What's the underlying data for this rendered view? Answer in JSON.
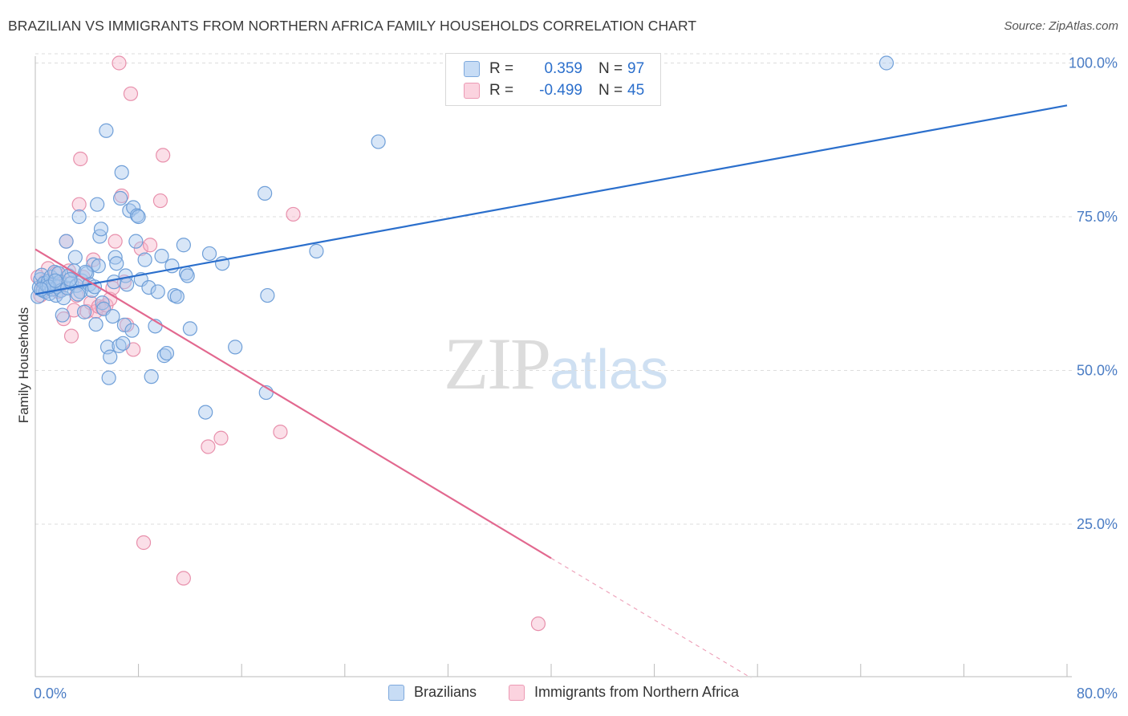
{
  "header": {
    "title": "BRAZILIAN VS IMMIGRANTS FROM NORTHERN AFRICA FAMILY HOUSEHOLDS CORRELATION CHART",
    "source": "Source: ZipAtlas.com"
  },
  "watermark": {
    "zip": "ZIP",
    "atlas": "atlas"
  },
  "legend_top": {
    "rows": [
      {
        "r_label": "R =",
        "r_value": "0.359",
        "n_label": "N =",
        "n_value": "97",
        "color": "#a8c8ee"
      },
      {
        "r_label": "R =",
        "r_value": "-0.499",
        "n_label": "N =",
        "n_value": "45",
        "color": "#f6b8cb"
      }
    ]
  },
  "legend_bottom": {
    "items": [
      {
        "label": "Brazilians",
        "color": "#a8c8ee"
      },
      {
        "label": "Immigrants from Northern Africa",
        "color": "#f6b8cb"
      }
    ]
  },
  "colors": {
    "blue_fill": "#a8c8ee",
    "blue_stroke": "#6f9fd8",
    "blue_line": "#2b6fcc",
    "pink_fill": "#f6b8cb",
    "pink_stroke": "#e890ac",
    "pink_line": "#e2688f",
    "axis_label": "#4a7cc4",
    "grid": "#dddddd"
  },
  "chart_data": {
    "type": "scatter",
    "title": "BRAZILIAN VS IMMIGRANTS FROM NORTHERN AFRICA FAMILY HOUSEHOLDS CORRELATION CHART",
    "xlabel": "",
    "ylabel": "Family Households",
    "xlim": [
      0,
      80
    ],
    "ylim": [
      0,
      102
    ],
    "x_tick_labels": [
      "0.0%",
      "80.0%"
    ],
    "y_ticks": [
      25,
      50,
      75,
      100
    ],
    "y_tick_labels": [
      "25.0%",
      "50.0%",
      "75.0%",
      "100.0%"
    ],
    "grid": true,
    "legend": "top-center",
    "series": [
      {
        "name": "Brazilians",
        "r": 0.359,
        "n": 97,
        "trend": {
          "x": [
            0,
            80
          ],
          "y": [
            62.4,
            93.1
          ],
          "dashed_from": null
        },
        "points": [
          [
            0.2,
            62.0
          ],
          [
            0.3,
            63.5
          ],
          [
            0.4,
            64.8
          ],
          [
            0.5,
            65.5
          ],
          [
            0.6,
            63.0
          ],
          [
            0.7,
            64.2
          ],
          [
            0.8,
            62.8
          ],
          [
            0.9,
            63.8
          ],
          [
            1.0,
            64.5
          ],
          [
            1.1,
            62.5
          ],
          [
            1.2,
            65.2
          ],
          [
            1.3,
            63.2
          ],
          [
            1.4,
            64.0
          ],
          [
            1.5,
            66.0
          ],
          [
            1.6,
            62.2
          ],
          [
            1.7,
            63.6
          ],
          [
            1.8,
            65.8
          ],
          [
            1.9,
            64.4
          ],
          [
            2.0,
            63.0
          ],
          [
            2.1,
            59.0
          ],
          [
            2.2,
            61.8
          ],
          [
            2.4,
            71.0
          ],
          [
            2.5,
            63.4
          ],
          [
            2.6,
            65.4
          ],
          [
            2.8,
            64.2
          ],
          [
            3.0,
            66.2
          ],
          [
            3.1,
            68.4
          ],
          [
            3.2,
            63.8
          ],
          [
            3.4,
            75.0
          ],
          [
            3.5,
            62.8
          ],
          [
            3.6,
            64.6
          ],
          [
            3.8,
            59.5
          ],
          [
            4.0,
            65.8
          ],
          [
            4.2,
            64.0
          ],
          [
            4.4,
            63.0
          ],
          [
            4.5,
            67.2
          ],
          [
            4.7,
            57.5
          ],
          [
            4.8,
            77.0
          ],
          [
            4.9,
            67.0
          ],
          [
            5.0,
            71.8
          ],
          [
            5.1,
            73.0
          ],
          [
            5.2,
            61.0
          ],
          [
            5.3,
            60.0
          ],
          [
            5.5,
            89.0
          ],
          [
            5.6,
            53.8
          ],
          [
            5.7,
            48.8
          ],
          [
            5.8,
            52.2
          ],
          [
            6.0,
            58.8
          ],
          [
            6.2,
            68.4
          ],
          [
            6.3,
            67.4
          ],
          [
            6.5,
            54.0
          ],
          [
            6.6,
            78.0
          ],
          [
            6.7,
            82.2
          ],
          [
            6.8,
            54.4
          ],
          [
            6.9,
            57.4
          ],
          [
            7.0,
            65.4
          ],
          [
            7.1,
            64.0
          ],
          [
            7.3,
            76.0
          ],
          [
            7.5,
            56.5
          ],
          [
            7.6,
            76.5
          ],
          [
            7.8,
            71.0
          ],
          [
            7.9,
            75.2
          ],
          [
            8.0,
            75.0
          ],
          [
            8.2,
            64.8
          ],
          [
            8.5,
            68.0
          ],
          [
            8.8,
            63.5
          ],
          [
            9.0,
            49.0
          ],
          [
            9.3,
            57.2
          ],
          [
            9.5,
            62.8
          ],
          [
            9.8,
            68.6
          ],
          [
            10.0,
            52.4
          ],
          [
            10.2,
            52.8
          ],
          [
            10.6,
            67.0
          ],
          [
            10.8,
            62.2
          ],
          [
            11.0,
            62.0
          ],
          [
            11.5,
            70.4
          ],
          [
            11.7,
            65.8
          ],
          [
            11.8,
            65.4
          ],
          [
            12.0,
            56.8
          ],
          [
            13.2,
            43.2
          ],
          [
            13.5,
            69.0
          ],
          [
            14.5,
            67.4
          ],
          [
            15.5,
            53.8
          ],
          [
            17.8,
            78.8
          ],
          [
            17.9,
            46.4
          ],
          [
            18.0,
            62.2
          ],
          [
            21.8,
            69.4
          ],
          [
            26.6,
            87.2
          ],
          [
            66.0,
            100.0
          ],
          [
            2.7,
            64.8
          ],
          [
            1.05,
            63.6
          ],
          [
            1.55,
            64.6
          ],
          [
            3.3,
            62.4
          ],
          [
            0.45,
            63.2
          ],
          [
            4.6,
            63.6
          ],
          [
            3.9,
            66.0
          ],
          [
            6.1,
            64.4
          ]
        ]
      },
      {
        "name": "Immigrants from Northern Africa",
        "r": -0.499,
        "n": 45,
        "trend": {
          "x": [
            0,
            55.5
          ],
          "y": [
            69.7,
            0
          ],
          "dashed_from": 40
        },
        "points": [
          [
            0.2,
            65.2
          ],
          [
            0.4,
            62.2
          ],
          [
            0.6,
            63.8
          ],
          [
            0.8,
            64.6
          ],
          [
            1.0,
            66.6
          ],
          [
            1.2,
            63.2
          ],
          [
            1.4,
            64.2
          ],
          [
            1.6,
            65.8
          ],
          [
            1.8,
            62.8
          ],
          [
            2.0,
            64.0
          ],
          [
            2.2,
            58.4
          ],
          [
            2.4,
            71.0
          ],
          [
            2.6,
            66.2
          ],
          [
            2.8,
            55.6
          ],
          [
            3.0,
            59.8
          ],
          [
            3.2,
            62.2
          ],
          [
            3.4,
            77.0
          ],
          [
            3.5,
            84.4
          ],
          [
            3.7,
            65.2
          ],
          [
            4.0,
            59.6
          ],
          [
            4.3,
            61.0
          ],
          [
            4.5,
            68.0
          ],
          [
            4.7,
            59.6
          ],
          [
            4.9,
            60.4
          ],
          [
            5.2,
            60.2
          ],
          [
            5.5,
            60.6
          ],
          [
            5.8,
            61.6
          ],
          [
            6.0,
            63.4
          ],
          [
            6.2,
            71.0
          ],
          [
            6.5,
            100.0
          ],
          [
            6.7,
            78.4
          ],
          [
            6.9,
            64.4
          ],
          [
            7.1,
            57.4
          ],
          [
            7.4,
            95.0
          ],
          [
            7.6,
            53.4
          ],
          [
            8.2,
            69.8
          ],
          [
            8.9,
            70.4
          ],
          [
            9.7,
            77.6
          ],
          [
            9.9,
            85.0
          ],
          [
            11.5,
            16.2
          ],
          [
            13.4,
            37.6
          ],
          [
            14.4,
            39.0
          ],
          [
            19.0,
            40.0
          ],
          [
            20.0,
            75.4
          ],
          [
            39.0,
            8.8
          ]
        ]
      }
    ],
    "extra_pink_point": [
      8.4,
      22.0
    ]
  }
}
